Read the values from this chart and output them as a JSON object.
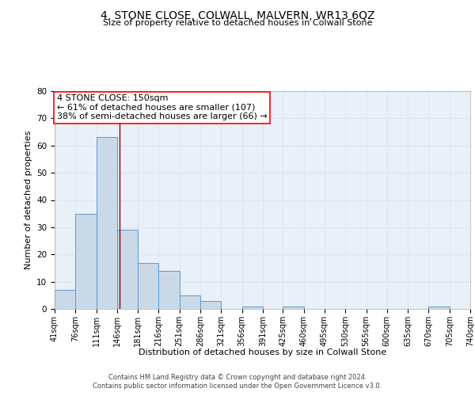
{
  "title": "4, STONE CLOSE, COLWALL, MALVERN, WR13 6QZ",
  "subtitle": "Size of property relative to detached houses in Colwall Stone",
  "xlabel": "Distribution of detached houses by size in Colwall Stone",
  "ylabel": "Number of detached properties",
  "bar_color": "#c9d9e8",
  "bar_edge_color": "#5b9bd5",
  "grid_color": "#dce6f1",
  "bg_color": "#eaf0f8",
  "annotation_text": "4 STONE CLOSE: 150sqm\n← 61% of detached houses are smaller (107)\n38% of semi-detached houses are larger (66) →",
  "annotation_box_color": "white",
  "annotation_box_edge": "red",
  "marker_line_color": "#8b0000",
  "footer_line1": "Contains HM Land Registry data © Crown copyright and database right 2024.",
  "footer_line2": "Contains public sector information licensed under the Open Government Licence v3.0.",
  "bins": [
    41,
    76,
    111,
    146,
    181,
    216,
    251,
    286,
    321,
    356,
    391,
    425,
    460,
    495,
    530,
    565,
    600,
    635,
    670,
    705,
    740
  ],
  "counts": [
    7,
    35,
    63,
    29,
    17,
    14,
    5,
    3,
    0,
    1,
    0,
    1,
    0,
    0,
    0,
    0,
    0,
    0,
    1,
    0
  ],
  "marker_x": 150,
  "ylim": [
    0,
    80
  ],
  "xlim": [
    41,
    740
  ],
  "title_fontsize": 10,
  "subtitle_fontsize": 8,
  "ylabel_fontsize": 8,
  "xlabel_fontsize": 8,
  "tick_fontsize": 7,
  "footer_fontsize": 6,
  "ann_fontsize": 8
}
